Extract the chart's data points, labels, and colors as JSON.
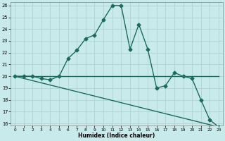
{
  "title": "",
  "xlabel": "Humidex (Indice chaleur)",
  "xlim": [
    -0.5,
    23.5
  ],
  "ylim": [
    15.8,
    26.3
  ],
  "yticks": [
    16,
    17,
    18,
    19,
    20,
    21,
    22,
    23,
    24,
    25,
    26
  ],
  "xticks": [
    0,
    1,
    2,
    3,
    4,
    5,
    6,
    7,
    8,
    9,
    10,
    11,
    12,
    13,
    14,
    15,
    16,
    17,
    18,
    19,
    20,
    21,
    22,
    23
  ],
  "bg_color": "#c8eaea",
  "grid_color": "#afd4d4",
  "line_color": "#1a6b5a",
  "curve1_x": [
    0,
    1,
    2,
    3,
    4,
    5,
    6,
    7,
    8,
    9,
    10,
    11,
    12,
    13,
    14,
    15,
    16,
    17,
    18,
    19,
    20,
    21,
    22,
    23
  ],
  "curve1_y": [
    20.0,
    20.0,
    20.0,
    19.8,
    19.7,
    20.0,
    21.5,
    22.2,
    23.2,
    23.5,
    24.8,
    26.0,
    26.0,
    22.3,
    24.4,
    22.3,
    19.0,
    19.2,
    20.3,
    20.0,
    19.8,
    18.0,
    16.3,
    15.7
  ],
  "curve2_x": [
    0,
    23
  ],
  "curve2_y": [
    20.0,
    20.0
  ],
  "curve3_x": [
    0,
    23
  ],
  "curve3_y": [
    20.0,
    15.7
  ],
  "marker": "D",
  "markersize": 2.5,
  "linewidth": 1.0
}
